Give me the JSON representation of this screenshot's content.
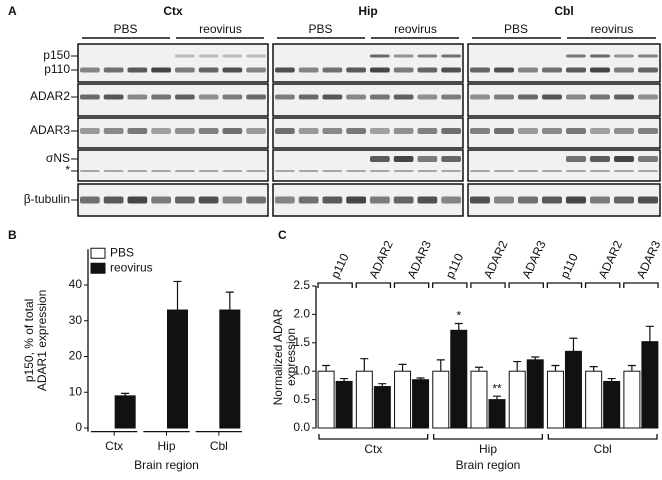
{
  "blot": {
    "panel": "A",
    "regions": [
      "Ctx",
      "Hip",
      "Cbl"
    ],
    "conditions": [
      "PBS",
      "reovirus"
    ],
    "rows": [
      {
        "labels": [
          "p150",
          "p110"
        ]
      },
      {
        "labels": [
          "ADAR2"
        ]
      },
      {
        "labels": [
          "ADAR3"
        ]
      },
      {
        "labels": [
          "σNS",
          "*"
        ]
      },
      {
        "labels": [
          "β-tubulin"
        ]
      }
    ]
  },
  "chart_data": [
    {
      "panel": "B",
      "type": "bar",
      "ylabel": [
        "p150, % of total",
        "ADAR1 expression"
      ],
      "xlabel": "Brain region",
      "categories": [
        "Ctx",
        "Hip",
        "Cbl"
      ],
      "series": [
        {
          "name": "PBS",
          "color": "#ffffff",
          "values": [
            0,
            0,
            0
          ]
        },
        {
          "name": "reovirus",
          "color": "#111111",
          "values": [
            9,
            33,
            33
          ],
          "errors": [
            0.7,
            8,
            5
          ]
        }
      ],
      "ylim": [
        -1,
        50
      ],
      "yticks": [
        0,
        10,
        20,
        30,
        40
      ],
      "legend": "upper left"
    },
    {
      "panel": "C",
      "type": "bar",
      "ylabel": [
        "Normalized ADAR",
        "expression"
      ],
      "xlabel": "Brain region",
      "groups": [
        "Ctx",
        "Hip",
        "Cbl"
      ],
      "categories": [
        "p110",
        "ADAR2",
        "ADAR3",
        "p110",
        "ADAR2",
        "ADAR3",
        "p110",
        "ADAR2",
        "ADAR3"
      ],
      "series": [
        {
          "color": "#ffffff",
          "values": [
            1,
            1,
            1,
            1,
            1,
            1,
            1,
            1,
            1
          ],
          "errors": [
            0.1,
            0.22,
            0.12,
            0.2,
            0.07,
            0.17,
            0.1,
            0.08,
            0.1
          ]
        },
        {
          "color": "#111111",
          "values": [
            0.82,
            0.73,
            0.85,
            1.72,
            0.5,
            1.2,
            1.35,
            0.82,
            1.52
          ],
          "errors": [
            0.05,
            0.05,
            0.03,
            0.12,
            0.06,
            0.05,
            0.23,
            0.05,
            0.27
          ],
          "marks": [
            null,
            null,
            null,
            "*",
            "**",
            null,
            null,
            null,
            null
          ]
        }
      ],
      "ylim": [
        0,
        2.5
      ],
      "yticks": [
        {
          "value": 0,
          "label": "0.0"
        },
        0.5,
        {
          "value": 1,
          "label": "1.0"
        },
        1.5,
        {
          "value": 2,
          "label": "2.0"
        },
        2.5
      ]
    }
  ]
}
